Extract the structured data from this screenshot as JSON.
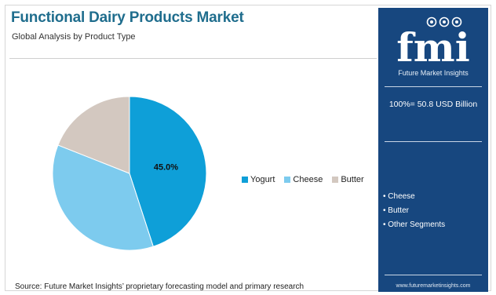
{
  "header": {
    "title": "Functional Dairy Products Market",
    "subtitle": "Global Analysis by Product Type"
  },
  "chart_data": {
    "type": "pie",
    "title": "Functional Dairy Products Market",
    "subtitle": "Global Analysis by Product Type",
    "categories": [
      "Yogurt",
      "Cheese",
      "Butter"
    ],
    "values": [
      45.0,
      36.0,
      19.0
    ],
    "labels": [
      "45.0%",
      "",
      ""
    ],
    "colors": [
      "#0e9fd8",
      "#7dcbee",
      "#d3c8c0"
    ],
    "legend_position": "right"
  },
  "legend": {
    "items": [
      {
        "label": "Yogurt",
        "color": "#0e9fd8"
      },
      {
        "label": "Cheese",
        "color": "#7dcbee"
      },
      {
        "label": "Butter",
        "color": "#d3c8c0"
      }
    ]
  },
  "footer": {
    "source": "Source: Future Market Insights’ proprietary forecasting model and primary research"
  },
  "panel": {
    "logo_text": "fmi",
    "brand": "Future Market Insights",
    "total": "100%= 50.8 USD Billion",
    "segments": [
      "• Cheese",
      "• Butter",
      "• Other Segments"
    ],
    "url": "www.futuremarketinsights.com",
    "bg_color": "#17477f"
  }
}
